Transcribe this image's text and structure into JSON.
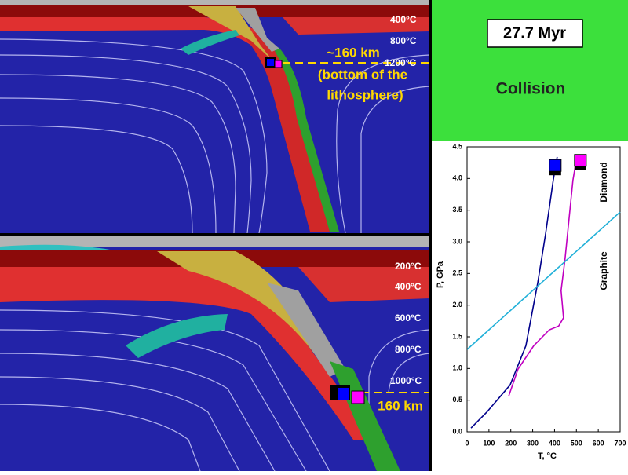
{
  "time_label": "27.7 Myr",
  "heading": "Collision",
  "top_panel": {
    "isotherm_labels": [
      "400°C",
      "800°C",
      "1200°C"
    ],
    "annotations": [
      "~160 km",
      "(bottom of the",
      "lithosphere)"
    ]
  },
  "bottom_panel": {
    "isotherm_labels": [
      "200°C",
      "400°C",
      "600°C",
      "800°C",
      "1000°C"
    ],
    "annotations": [
      "160 km"
    ]
  },
  "chart_data": {
    "type": "line",
    "x_label": "T, °C",
    "y_label": "P, GPa",
    "xlim": [
      0,
      700
    ],
    "xticks": [
      0,
      100,
      200,
      300,
      400,
      500,
      600,
      700
    ],
    "ylim": [
      0,
      4.5
    ],
    "yticks": [
      {
        "value": 0,
        "label": "0.0"
      },
      0.5,
      {
        "value": 1,
        "label": "1.0"
      },
      1.5,
      {
        "value": 2,
        "label": "2.0"
      },
      2.5,
      {
        "value": 3,
        "label": "3.0"
      },
      3.5,
      {
        "value": 4,
        "label": "4.0"
      },
      4.5
    ],
    "series": [
      {
        "color": "#00008b",
        "x": [
          18,
          90,
          197,
          269,
          323,
          358,
          394,
          412
        ],
        "values": [
          0.06,
          0.31,
          0.74,
          1.36,
          2.35,
          3.1,
          3.97,
          4.34
        ]
      },
      {
        "color": "#c000c0",
        "x": [
          190,
          233,
          305,
          376,
          419,
          441,
          430,
          448,
          466,
          484,
          502
        ],
        "values": [
          0.56,
          0.99,
          1.36,
          1.61,
          1.67,
          1.8,
          2.23,
          2.73,
          3.35,
          3.97,
          4.34
        ]
      },
      {
        "color": "#20b0d8",
        "x": [
          0,
          700
        ],
        "values": [
          1.3,
          3.47
        ]
      }
    ],
    "markers": {
      "x": [
        405,
        520
      ],
      "values": [
        4.2,
        4.28
      ],
      "colors": [
        "#0000ff",
        "#ff00ff"
      ]
    },
    "annotations": [
      "Diamond",
      "Graphite"
    ]
  }
}
